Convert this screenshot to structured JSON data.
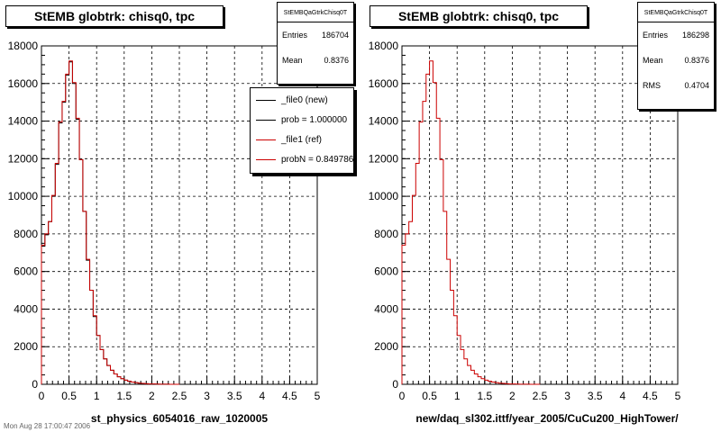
{
  "left_title": "StEMB globtrk: chisq0, tpc",
  "right_title": "StEMB globtrk: chisq0, tpc",
  "left_stats": {
    "name": "StEMBQaGtrkChisq0T",
    "rows": [
      {
        "label": "Entries",
        "value": "186704"
      },
      {
        "label": "Mean",
        "value": "0.8376"
      }
    ]
  },
  "right_stats": {
    "name": "StEMBQaGtrkChisq0T",
    "rows": [
      {
        "label": "Entries",
        "value": "186298"
      },
      {
        "label": "Mean",
        "value": "0.8376"
      },
      {
        "label": "RMS",
        "value": "0.4704"
      }
    ]
  },
  "legend": [
    {
      "label": "_file0 (new)",
      "color": "#000000"
    },
    {
      "label": "prob = 1.000000",
      "color": "#000000"
    },
    {
      "label": "_file1 (ref)",
      "color": "#cc0000"
    },
    {
      "label": "probN = 0.849786",
      "color": "#cc0000"
    }
  ],
  "footer_text": "Mon Aug 28 17:00:47 2006",
  "chart_data": [
    {
      "type": "bar",
      "title": "StEMB globtrk: chisq0, tpc",
      "xlabel": "st_physics_6054016_raw_1020005",
      "ylabel": "",
      "xlim": [
        0,
        5
      ],
      "ylim": [
        0,
        18000
      ],
      "xticks": [
        "0",
        "0.5",
        "1",
        "1.5",
        "2",
        "2.5",
        "3",
        "3.5",
        "4",
        "4.5",
        "5"
      ],
      "yticks": [
        "0",
        "2000",
        "4000",
        "6000",
        "8000",
        "10000",
        "12000",
        "14000",
        "16000",
        "18000"
      ],
      "grid": true,
      "bin_width": 0.0625,
      "series": [
        {
          "name": "_file0 (new)",
          "color": "#000000",
          "values": [
            7350,
            7950,
            8650,
            10000,
            11700,
            13900,
            15000,
            16450,
            17150,
            16000,
            14100,
            11950,
            9200,
            6600,
            5000,
            3600,
            2600,
            1850,
            1350,
            1000,
            750,
            550,
            400,
            300,
            220,
            160,
            120,
            90,
            60,
            45,
            30,
            20,
            15,
            10,
            8,
            5,
            3,
            2,
            1,
            1
          ]
        },
        {
          "name": "_file1 (ref)",
          "color": "#cc0000",
          "values": [
            7400,
            8000,
            8650,
            10050,
            11750,
            13950,
            15050,
            16500,
            17200,
            16050,
            14150,
            11950,
            9200,
            6650,
            5000,
            3650,
            2600,
            1850,
            1350,
            1000,
            750,
            550,
            400,
            300,
            220,
            160,
            120,
            90,
            60,
            45,
            30,
            20,
            15,
            10,
            8,
            5,
            3,
            2,
            1,
            1
          ]
        }
      ]
    },
    {
      "type": "bar",
      "title": "StEMB globtrk: chisq0, tpc",
      "xlabel": "new/daq_sl302.ittf/year_2005/CuCu200_HighTower/",
      "ylabel": "",
      "xlim": [
        0,
        5
      ],
      "ylim": [
        0,
        18000
      ],
      "xticks": [
        "0",
        "0.5",
        "1",
        "1.5",
        "2",
        "2.5",
        "3",
        "3.5",
        "4",
        "4.5",
        "5"
      ],
      "yticks": [
        "0",
        "2000",
        "4000",
        "6000",
        "8000",
        "10000",
        "12000",
        "14000",
        "16000",
        "18000"
      ],
      "grid": true,
      "bin_width": 0.0625,
      "series": [
        {
          "name": "",
          "color": "#cc0000",
          "values": [
            7400,
            8000,
            8650,
            10050,
            11750,
            13950,
            15050,
            16500,
            17200,
            16050,
            14150,
            11950,
            9200,
            6650,
            5000,
            3650,
            2600,
            1850,
            1350,
            1000,
            750,
            550,
            400,
            300,
            220,
            160,
            120,
            90,
            60,
            45,
            30,
            20,
            15,
            10,
            8,
            5,
            3,
            2,
            1,
            1
          ]
        }
      ]
    }
  ]
}
